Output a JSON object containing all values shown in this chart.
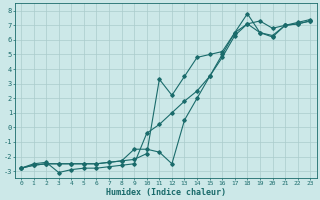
{
  "xlabel": "Humidex (Indice chaleur)",
  "xlim": [
    -0.5,
    23.5
  ],
  "ylim": [
    -3.5,
    8.5
  ],
  "xticks": [
    0,
    1,
    2,
    3,
    4,
    5,
    6,
    7,
    8,
    9,
    10,
    11,
    12,
    13,
    14,
    15,
    16,
    17,
    18,
    19,
    20,
    21,
    22,
    23
  ],
  "yticks": [
    -3,
    -2,
    -1,
    0,
    1,
    2,
    3,
    4,
    5,
    6,
    7,
    8
  ],
  "bg_color": "#cce8e8",
  "grid_color": "#aacccc",
  "line_color": "#1a6b6b",
  "line1_x": [
    0,
    1,
    2,
    3,
    4,
    5,
    6,
    7,
    8,
    9,
    10,
    11,
    12,
    13,
    14,
    15,
    16,
    17,
    18,
    19,
    20,
    21,
    22,
    23
  ],
  "line1_y": [
    -2.8,
    -2.6,
    -2.5,
    -2.5,
    -2.5,
    -2.5,
    -2.5,
    -2.4,
    -2.3,
    -2.2,
    -1.8,
    3.3,
    2.2,
    3.5,
    4.8,
    5.0,
    5.2,
    6.5,
    7.8,
    6.5,
    6.2,
    7.0,
    7.1,
    7.3
  ],
  "line2_x": [
    0,
    1,
    2,
    3,
    4,
    5,
    6,
    7,
    8,
    9,
    10,
    11,
    12,
    13,
    14,
    15,
    16,
    17,
    18,
    19,
    20,
    21,
    22,
    23
  ],
  "line2_y": [
    -2.8,
    -2.5,
    -2.4,
    -3.1,
    -2.9,
    -2.8,
    -2.8,
    -2.7,
    -2.6,
    -2.5,
    -0.4,
    0.2,
    1.0,
    1.8,
    2.5,
    3.5,
    4.8,
    6.3,
    7.1,
    6.5,
    6.3,
    7.0,
    7.2,
    7.4
  ],
  "line3_x": [
    0,
    1,
    2,
    3,
    4,
    5,
    6,
    7,
    8,
    9,
    10,
    11,
    12,
    13,
    14,
    15,
    16,
    17,
    18,
    19,
    20,
    21,
    22,
    23
  ],
  "line3_y": [
    -2.8,
    -2.6,
    -2.5,
    -2.5,
    -2.5,
    -2.5,
    -2.5,
    -2.4,
    -2.3,
    -1.5,
    -1.5,
    -1.7,
    -2.5,
    0.5,
    2.0,
    3.5,
    5.0,
    6.5,
    7.1,
    7.3,
    6.8,
    7.0,
    7.1,
    7.3
  ]
}
